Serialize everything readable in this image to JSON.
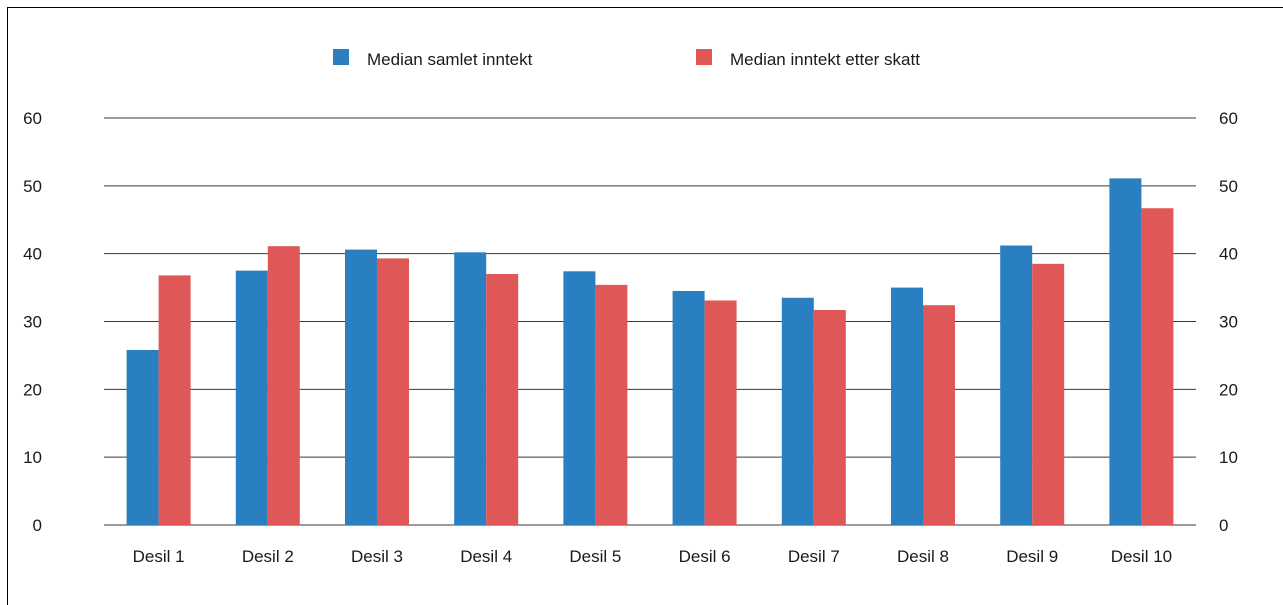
{
  "chart_data": {
    "type": "bar",
    "categories": [
      "Desil 1",
      "Desil 2",
      "Desil 3",
      "Desil 4",
      "Desil 5",
      "Desil 6",
      "Desil 7",
      "Desil 8",
      "Desil 9",
      "Desil 10"
    ],
    "series": [
      {
        "name": "Median samlet inntekt",
        "color": "#2a7fc1",
        "values": [
          25.8,
          37.5,
          40.6,
          40.2,
          37.4,
          34.5,
          33.5,
          35.0,
          41.2,
          51.1
        ]
      },
      {
        "name": "Median inntekt etter skatt",
        "color": "#e05757",
        "values": [
          36.8,
          41.1,
          39.3,
          37.0,
          35.4,
          33.1,
          31.7,
          32.4,
          38.5,
          46.7
        ]
      }
    ],
    "ylim": [
      0,
      60
    ],
    "yticks": [
      0,
      10,
      20,
      30,
      40,
      50,
      60
    ],
    "grid": true,
    "secondary_axis": true,
    "legend_position": "top-center"
  }
}
